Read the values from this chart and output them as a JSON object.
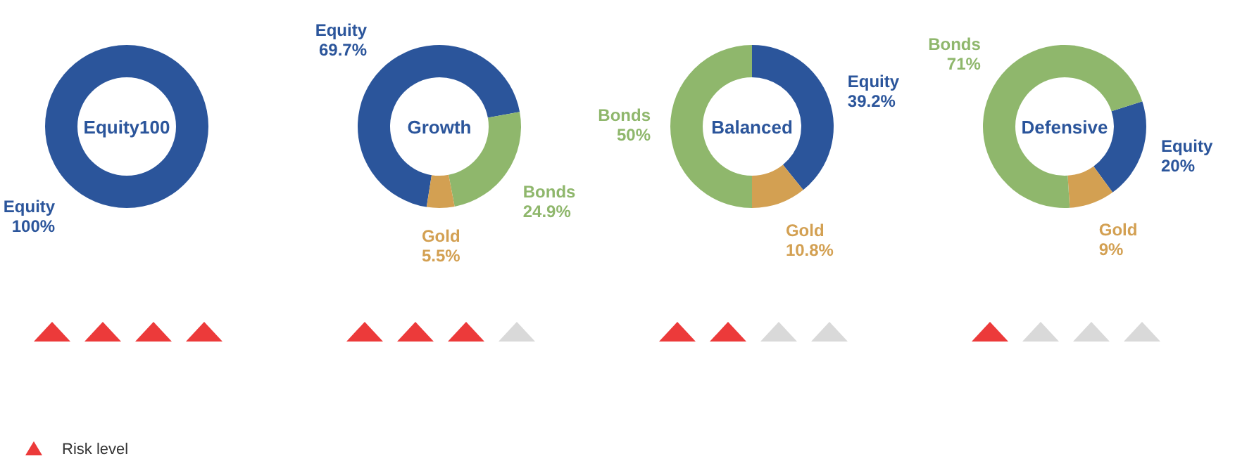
{
  "chart_data": [
    {
      "type": "donut",
      "title": "Equity100",
      "categories": [
        "Equity"
      ],
      "values": [
        100
      ],
      "value_labels": [
        "100%"
      ],
      "colors": [
        "#2b559b"
      ],
      "annotations": [
        "Risk level"
      ]
    },
    {
      "type": "donut",
      "title": "Growth",
      "categories": [
        "Equity",
        "Bonds",
        "Gold"
      ],
      "values": [
        69.7,
        24.9,
        5.5
      ],
      "value_labels": [
        "69.7%",
        "24.9%",
        "5.5%"
      ],
      "colors": [
        "#2b559b",
        "#8fb76c",
        "#d3a052"
      ]
    },
    {
      "type": "donut",
      "title": "Balanced",
      "categories": [
        "Equity",
        "Gold",
        "Bonds"
      ],
      "values": [
        39.2,
        10.8,
        50
      ],
      "value_labels": [
        "39.2%",
        "10.8%",
        "50%"
      ],
      "colors": [
        "#2b559b",
        "#d3a052",
        "#8fb76c"
      ]
    },
    {
      "type": "donut",
      "title": "Defensive",
      "categories": [
        "Equity",
        "Gold",
        "Bonds"
      ],
      "values": [
        20,
        9,
        71
      ],
      "value_labels": [
        "20%",
        "9%",
        "71%"
      ],
      "colors": [
        "#2b559b",
        "#d3a052",
        "#8fb76c"
      ]
    }
  ]
}
